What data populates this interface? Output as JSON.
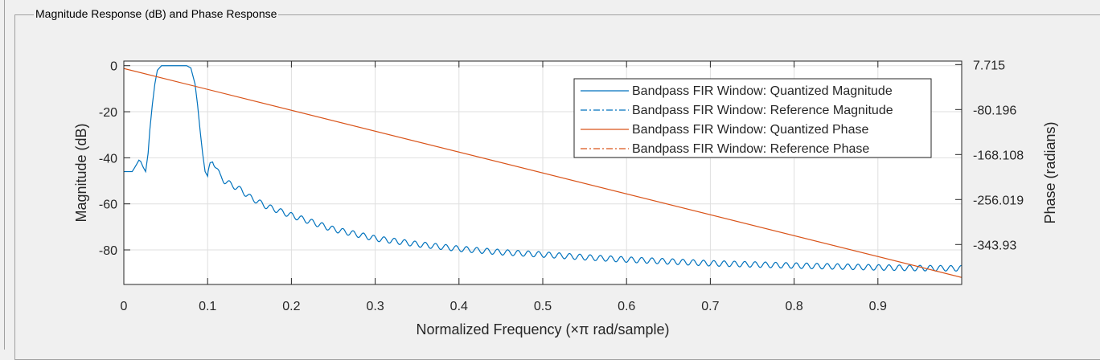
{
  "panel": {
    "title": "Magnitude Response (dB) and Phase Response"
  },
  "chart_data": {
    "type": "line",
    "xlabel": "Normalized Frequency (×π rad/sample)",
    "ylabel_left": "Magnitude (dB)",
    "ylabel_right": "Phase (radians)",
    "xlim": [
      0,
      1
    ],
    "ylim_left": [
      -95,
      2
    ],
    "ylim_right": [
      -422,
      14.5
    ],
    "grid": true,
    "legend_position": "top-right",
    "x_ticks": [
      0,
      0.1,
      0.2,
      0.3,
      0.4,
      0.5,
      0.6,
      0.7,
      0.8,
      0.9
    ],
    "x_tick_labels": [
      "0",
      "0.1",
      "0.2",
      "0.3",
      "0.4",
      "0.5",
      "0.6",
      "0.7",
      "0.8",
      "0.9"
    ],
    "y_left_ticks": [
      0,
      -20,
      -40,
      -60,
      -80
    ],
    "y_left_tick_labels": [
      "0",
      "-20",
      "-40",
      "-60",
      "-80"
    ],
    "y_right_ticks": [
      7.715,
      -80.196,
      -168.108,
      -256.019,
      -343.93
    ],
    "y_right_tick_labels": [
      "7.715",
      "-80.196",
      "-168.108",
      "-256.019",
      "-343.93"
    ],
    "series": [
      {
        "name": "Bandpass FIR Window: Quantized Magnitude",
        "axis": "left",
        "style": "solid",
        "color": "#0072bd",
        "x": [
          0,
          0.005,
          0.01,
          0.015,
          0.018,
          0.02,
          0.023,
          0.026,
          0.029,
          0.031,
          0.034,
          0.037,
          0.04,
          0.045,
          0.05,
          0.055,
          0.06,
          0.065,
          0.07,
          0.075,
          0.08,
          0.085,
          0.088,
          0.091,
          0.094,
          0.097,
          0.1,
          0.103,
          0.106,
          0.11,
          0.115,
          0.12,
          0.13,
          0.14,
          0.15,
          0.17,
          0.2,
          0.25,
          0.3,
          0.35,
          0.4,
          0.45,
          0.5,
          0.55,
          0.6,
          0.65,
          0.7,
          0.75,
          0.8,
          0.85,
          0.9,
          0.95,
          1.0
        ],
        "y": [
          -46,
          -46,
          -46,
          -43,
          -41,
          -41.5,
          -44,
          -46,
          -38,
          -28,
          -17,
          -8,
          -2,
          0,
          0,
          0,
          0,
          0,
          0,
          0,
          -1,
          -8,
          -17,
          -28,
          -38,
          -46,
          -48,
          -43,
          -41,
          -44,
          -48,
          -50,
          -52,
          -54,
          -57,
          -61,
          -65,
          -71,
          -75,
          -77.5,
          -79.5,
          -81,
          -82,
          -83.2,
          -84.2,
          -85,
          -85.8,
          -86.3,
          -86.8,
          -87.2,
          -87.6,
          -87.9,
          -88
        ]
      },
      {
        "name": "Bandpass FIR Window: Reference Magnitude",
        "axis": "left",
        "style": "dashdot",
        "color": "#0072bd",
        "x": [],
        "y": []
      },
      {
        "name": "Bandpass FIR Window: Quantized Phase",
        "axis": "right",
        "style": "solid",
        "color": "#d95319",
        "x": [
          0,
          1.0
        ],
        "y": [
          0,
          -408.3
        ]
      },
      {
        "name": "Bandpass FIR Window: Reference Phase",
        "axis": "right",
        "style": "dashdot",
        "color": "#d95319",
        "x": [],
        "y": []
      }
    ]
  }
}
